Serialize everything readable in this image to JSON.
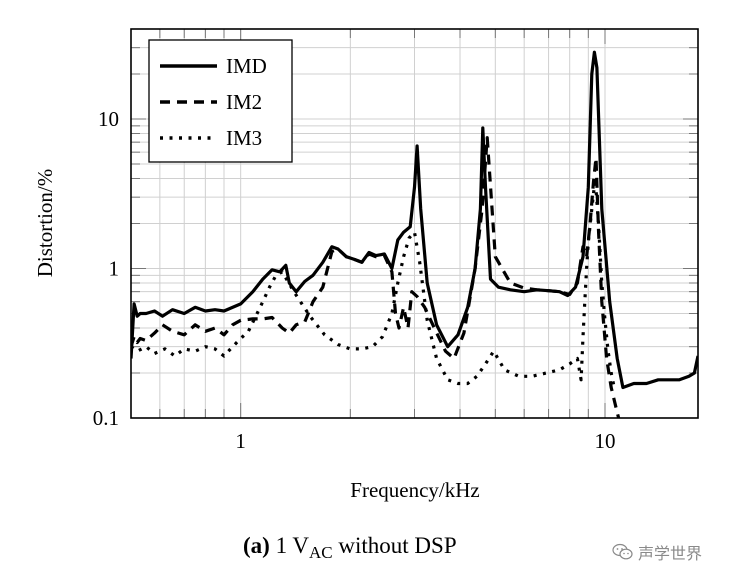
{
  "chart_data": {
    "type": "line",
    "title": "",
    "xlabel": "Frequency/kHz",
    "ylabel": "Distortion/%",
    "xscale": "log",
    "yscale": "log",
    "xlim": [
      0.5,
      18
    ],
    "ylim": [
      0.1,
      40
    ],
    "xticks": [
      1,
      10
    ],
    "xtick_labels": [
      "1",
      "10"
    ],
    "yticks": [
      0.1,
      1,
      10
    ],
    "ytick_labels": [
      "0.1",
      "1",
      "10"
    ],
    "grid": true,
    "legend_position": "top-left",
    "series": [
      {
        "name": "IMD",
        "style": "solid",
        "x": [
          0.5,
          0.51,
          0.52,
          0.53,
          0.55,
          0.58,
          0.61,
          0.65,
          0.7,
          0.75,
          0.8,
          0.85,
          0.9,
          1.0,
          1.08,
          1.15,
          1.22,
          1.28,
          1.33,
          1.36,
          1.42,
          1.5,
          1.58,
          1.68,
          1.78,
          1.85,
          1.95,
          2.05,
          2.15,
          2.25,
          2.35,
          2.48,
          2.6,
          2.7,
          2.8,
          2.92,
          3.0,
          3.05,
          3.12,
          3.25,
          3.45,
          3.7,
          3.95,
          4.2,
          4.4,
          4.55,
          4.62,
          4.7,
          4.85,
          5.1,
          5.5,
          6.0,
          6.5,
          7.0,
          7.5,
          7.9,
          8.3,
          8.7,
          9.0,
          9.2,
          9.35,
          9.5,
          9.8,
          10.3,
          10.8,
          11.2,
          12.0,
          13.0,
          14.0,
          15.0,
          16.0,
          17.0,
          17.6,
          18.0
        ],
        "values": [
          0.25,
          0.58,
          0.48,
          0.5,
          0.5,
          0.52,
          0.48,
          0.53,
          0.5,
          0.55,
          0.52,
          0.53,
          0.52,
          0.58,
          0.7,
          0.85,
          0.98,
          0.95,
          1.05,
          0.8,
          0.7,
          0.82,
          0.9,
          1.1,
          1.4,
          1.35,
          1.2,
          1.15,
          1.1,
          1.28,
          1.22,
          1.25,
          1.0,
          1.55,
          1.75,
          1.9,
          3.5,
          6.6,
          2.5,
          0.8,
          0.42,
          0.3,
          0.36,
          0.55,
          1.0,
          2.5,
          8.7,
          3.5,
          0.85,
          0.75,
          0.72,
          0.7,
          0.72,
          0.71,
          0.7,
          0.66,
          0.75,
          1.2,
          3.5,
          20.0,
          28.0,
          22.0,
          2.5,
          0.6,
          0.25,
          0.16,
          0.17,
          0.17,
          0.18,
          0.18,
          0.18,
          0.19,
          0.2,
          0.26
        ]
      },
      {
        "name": "IM2",
        "style": "dashed",
        "x": [
          0.5,
          0.51,
          0.52,
          0.53,
          0.55,
          0.58,
          0.61,
          0.65,
          0.7,
          0.75,
          0.8,
          0.85,
          0.9,
          0.95,
          1.0,
          1.08,
          1.15,
          1.22,
          1.3,
          1.36,
          1.42,
          1.5,
          1.58,
          1.68,
          1.78,
          1.85,
          1.95,
          2.05,
          2.15,
          2.25,
          2.35,
          2.48,
          2.6,
          2.66,
          2.72,
          2.8,
          2.88,
          2.95,
          3.05,
          3.2,
          3.4,
          3.65,
          3.85,
          4.1,
          4.4,
          4.6,
          4.75,
          5.0,
          5.5,
          6.0,
          6.5,
          7.0,
          7.5,
          8.0,
          8.4,
          8.7,
          8.9,
          9.1,
          9.3,
          9.45,
          9.6,
          9.8,
          10.1,
          10.4,
          10.7,
          10.9
        ],
        "values": [
          0.3,
          0.35,
          0.32,
          0.34,
          0.33,
          0.37,
          0.42,
          0.38,
          0.36,
          0.42,
          0.38,
          0.4,
          0.36,
          0.42,
          0.45,
          0.46,
          0.46,
          0.47,
          0.4,
          0.37,
          0.42,
          0.44,
          0.6,
          0.75,
          1.3,
          1.35,
          1.2,
          1.15,
          1.1,
          1.25,
          1.2,
          1.22,
          0.95,
          0.5,
          0.4,
          0.55,
          0.4,
          0.7,
          0.65,
          0.55,
          0.4,
          0.28,
          0.25,
          0.37,
          1.0,
          2.5,
          7.5,
          1.2,
          0.8,
          0.74,
          0.72,
          0.71,
          0.7,
          0.67,
          0.8,
          1.4,
          1.2,
          2.0,
          3.8,
          5.5,
          1.8,
          0.6,
          0.25,
          0.16,
          0.12,
          0.1
        ]
      },
      {
        "name": "IM3",
        "style": "dotted",
        "x": [
          0.5,
          0.52,
          0.55,
          0.58,
          0.62,
          0.66,
          0.7,
          0.75,
          0.8,
          0.85,
          0.9,
          0.95,
          1.0,
          1.05,
          1.1,
          1.15,
          1.2,
          1.25,
          1.3,
          1.4,
          1.55,
          1.7,
          1.85,
          2.0,
          2.15,
          2.3,
          2.45,
          2.6,
          2.7,
          2.8,
          2.9,
          3.0,
          3.1,
          3.25,
          3.45,
          3.7,
          3.95,
          4.2,
          4.45,
          4.7,
          4.95,
          5.3,
          5.8,
          6.3,
          6.9,
          7.5,
          8.0,
          8.4,
          8.6,
          8.7,
          8.8,
          8.9,
          9.0,
          9.2,
          9.4,
          9.6,
          9.8,
          10.0,
          10.2,
          10.4,
          10.6
        ],
        "values": [
          0.3,
          0.28,
          0.3,
          0.27,
          0.29,
          0.26,
          0.29,
          0.28,
          0.3,
          0.29,
          0.26,
          0.3,
          0.34,
          0.38,
          0.48,
          0.6,
          0.75,
          0.9,
          0.95,
          0.7,
          0.48,
          0.36,
          0.31,
          0.29,
          0.29,
          0.3,
          0.35,
          0.5,
          0.8,
          1.2,
          1.6,
          1.75,
          1.1,
          0.45,
          0.25,
          0.18,
          0.17,
          0.17,
          0.19,
          0.23,
          0.28,
          0.21,
          0.19,
          0.19,
          0.2,
          0.21,
          0.23,
          0.25,
          0.18,
          0.35,
          0.6,
          1.0,
          1.5,
          2.5,
          4.0,
          2.0,
          0.8,
          0.45,
          0.28,
          0.2,
          0.16
        ]
      }
    ]
  },
  "caption": {
    "label": "(a)",
    "text_before_sub": "1 V",
    "subscript": "AC",
    "text_after_sub": " without DSP"
  },
  "watermark": {
    "icon": "wechat-icon",
    "text": "声学世界",
    "color": "#8a8a8a"
  }
}
